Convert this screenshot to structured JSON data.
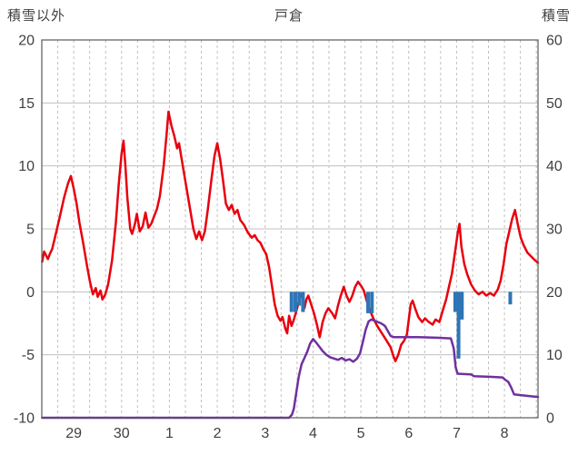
{
  "header": {
    "left_axis_title": "積雪以外",
    "chart_title": "戸倉",
    "right_axis_title": "積雪"
  },
  "chart_data": {
    "type": "line",
    "title": "戸倉",
    "left_axis": {
      "label": "積雪以外",
      "min": -10,
      "max": 20,
      "ticks": [
        20,
        15,
        10,
        5,
        0,
        -5,
        -10
      ]
    },
    "right_axis": {
      "label": "積雪",
      "min": 0,
      "max": 60,
      "ticks": [
        60,
        50,
        40,
        30,
        20,
        10,
        0
      ]
    },
    "x_axis": {
      "labels": [
        "29",
        "30",
        "1",
        "2",
        "3",
        "4",
        "5",
        "6",
        "7",
        "8"
      ],
      "min_t": -0.667,
      "max_t": 9.7,
      "gridline_step": 0.3333,
      "grid": true
    },
    "colors": {
      "temperature": "#e8000d",
      "snow_depth": "#7030a0",
      "snowfall_bars": "#2e75b6",
      "gridline": "#c0c0c0",
      "border": "#595959",
      "tick_text": "#3f3f3f"
    },
    "series": [
      {
        "name": "temperature",
        "axis": "left",
        "kind": "line",
        "points": [
          [
            -0.66,
            2.4
          ],
          [
            -0.62,
            3.2
          ],
          [
            -0.58,
            2.9
          ],
          [
            -0.54,
            2.6
          ],
          [
            -0.5,
            3.0
          ],
          [
            -0.45,
            3.4
          ],
          [
            -0.4,
            4.2
          ],
          [
            -0.3,
            5.8
          ],
          [
            -0.2,
            7.5
          ],
          [
            -0.12,
            8.6
          ],
          [
            -0.06,
            9.2
          ],
          [
            0.0,
            8.2
          ],
          [
            0.06,
            7.0
          ],
          [
            0.12,
            5.5
          ],
          [
            0.2,
            3.8
          ],
          [
            0.28,
            2.0
          ],
          [
            0.34,
            0.8
          ],
          [
            0.4,
            -0.2
          ],
          [
            0.46,
            0.3
          ],
          [
            0.5,
            -0.4
          ],
          [
            0.56,
            0.1
          ],
          [
            0.6,
            -0.6
          ],
          [
            0.66,
            -0.2
          ],
          [
            0.72,
            0.6
          ],
          [
            0.8,
            2.5
          ],
          [
            0.88,
            5.5
          ],
          [
            0.94,
            8.5
          ],
          [
            1.0,
            11.0
          ],
          [
            1.04,
            12.0
          ],
          [
            1.08,
            10.0
          ],
          [
            1.12,
            7.5
          ],
          [
            1.18,
            5.0
          ],
          [
            1.22,
            4.6
          ],
          [
            1.28,
            5.4
          ],
          [
            1.32,
            6.2
          ],
          [
            1.38,
            4.8
          ],
          [
            1.44,
            5.2
          ],
          [
            1.5,
            6.3
          ],
          [
            1.56,
            5.1
          ],
          [
            1.62,
            5.4
          ],
          [
            1.68,
            6.0
          ],
          [
            1.74,
            6.6
          ],
          [
            1.8,
            7.6
          ],
          [
            1.88,
            10.0
          ],
          [
            1.94,
            12.5
          ],
          [
            1.98,
            14.3
          ],
          [
            2.04,
            13.2
          ],
          [
            2.1,
            12.4
          ],
          [
            2.16,
            11.4
          ],
          [
            2.2,
            11.8
          ],
          [
            2.26,
            10.4
          ],
          [
            2.34,
            8.6
          ],
          [
            2.42,
            6.8
          ],
          [
            2.5,
            5.0
          ],
          [
            2.56,
            4.2
          ],
          [
            2.62,
            4.8
          ],
          [
            2.68,
            4.1
          ],
          [
            2.74,
            4.8
          ],
          [
            2.8,
            6.5
          ],
          [
            2.88,
            9.0
          ],
          [
            2.94,
            10.8
          ],
          [
            3.0,
            11.8
          ],
          [
            3.06,
            10.5
          ],
          [
            3.12,
            8.8
          ],
          [
            3.18,
            7.0
          ],
          [
            3.24,
            6.5
          ],
          [
            3.3,
            6.9
          ],
          [
            3.36,
            6.2
          ],
          [
            3.42,
            6.5
          ],
          [
            3.48,
            5.7
          ],
          [
            3.56,
            5.3
          ],
          [
            3.64,
            4.7
          ],
          [
            3.72,
            4.3
          ],
          [
            3.78,
            4.5
          ],
          [
            3.84,
            4.1
          ],
          [
            3.9,
            3.9
          ],
          [
            3.96,
            3.4
          ],
          [
            4.02,
            3.0
          ],
          [
            4.08,
            2.0
          ],
          [
            4.14,
            0.5
          ],
          [
            4.2,
            -1.0
          ],
          [
            4.26,
            -1.9
          ],
          [
            4.32,
            -2.3
          ],
          [
            4.36,
            -2.0
          ],
          [
            4.42,
            -2.9
          ],
          [
            4.46,
            -3.3
          ],
          [
            4.5,
            -1.9
          ],
          [
            4.55,
            -2.7
          ],
          [
            4.6,
            -2.2
          ],
          [
            4.66,
            -1.4
          ],
          [
            4.72,
            -0.5
          ],
          [
            4.76,
            -0.2
          ],
          [
            4.82,
            -1.3
          ],
          [
            4.86,
            -0.6
          ],
          [
            4.9,
            -0.3
          ],
          [
            4.96,
            -1.0
          ],
          [
            5.02,
            -1.7
          ],
          [
            5.08,
            -2.6
          ],
          [
            5.14,
            -3.6
          ],
          [
            5.2,
            -2.4
          ],
          [
            5.26,
            -1.7
          ],
          [
            5.32,
            -1.3
          ],
          [
            5.4,
            -1.7
          ],
          [
            5.46,
            -2.1
          ],
          [
            5.52,
            -1.1
          ],
          [
            5.58,
            -0.3
          ],
          [
            5.64,
            0.4
          ],
          [
            5.7,
            -0.3
          ],
          [
            5.76,
            -0.8
          ],
          [
            5.82,
            -0.3
          ],
          [
            5.88,
            0.4
          ],
          [
            5.94,
            0.8
          ],
          [
            6.0,
            0.5
          ],
          [
            6.06,
            0.1
          ],
          [
            6.12,
            -0.7
          ],
          [
            6.18,
            -1.4
          ],
          [
            6.26,
            -2.1
          ],
          [
            6.34,
            -2.7
          ],
          [
            6.44,
            -3.3
          ],
          [
            6.54,
            -3.9
          ],
          [
            6.62,
            -4.4
          ],
          [
            6.68,
            -5.1
          ],
          [
            6.72,
            -5.5
          ],
          [
            6.78,
            -5.0
          ],
          [
            6.84,
            -4.2
          ],
          [
            6.9,
            -3.9
          ],
          [
            6.96,
            -3.4
          ],
          [
            7.0,
            -2.2
          ],
          [
            7.04,
            -1.0
          ],
          [
            7.08,
            -0.7
          ],
          [
            7.14,
            -1.4
          ],
          [
            7.2,
            -2.0
          ],
          [
            7.28,
            -2.4
          ],
          [
            7.34,
            -2.1
          ],
          [
            7.42,
            -2.4
          ],
          [
            7.5,
            -2.6
          ],
          [
            7.56,
            -2.2
          ],
          [
            7.64,
            -2.4
          ],
          [
            7.7,
            -1.6
          ],
          [
            7.78,
            -0.6
          ],
          [
            7.84,
            0.4
          ],
          [
            7.9,
            1.4
          ],
          [
            7.96,
            3.0
          ],
          [
            8.02,
            4.6
          ],
          [
            8.06,
            5.4
          ],
          [
            8.1,
            3.6
          ],
          [
            8.16,
            2.2
          ],
          [
            8.22,
            1.4
          ],
          [
            8.3,
            0.6
          ],
          [
            8.38,
            0.1
          ],
          [
            8.46,
            -0.2
          ],
          [
            8.54,
            0.0
          ],
          [
            8.62,
            -0.3
          ],
          [
            8.7,
            -0.1
          ],
          [
            8.78,
            -0.3
          ],
          [
            8.86,
            0.2
          ],
          [
            8.92,
            0.9
          ],
          [
            8.98,
            2.2
          ],
          [
            9.04,
            3.8
          ],
          [
            9.1,
            4.8
          ],
          [
            9.16,
            5.8
          ],
          [
            9.22,
            6.5
          ],
          [
            9.28,
            5.3
          ],
          [
            9.34,
            4.3
          ],
          [
            9.4,
            3.7
          ],
          [
            9.48,
            3.1
          ],
          [
            9.56,
            2.8
          ],
          [
            9.64,
            2.5
          ],
          [
            9.7,
            2.3
          ]
        ]
      },
      {
        "name": "snow-depth",
        "axis": "right",
        "kind": "line",
        "points": [
          [
            -0.66,
            0
          ],
          [
            4.5,
            0
          ],
          [
            4.56,
            0.5
          ],
          [
            4.6,
            1.5
          ],
          [
            4.64,
            3.5
          ],
          [
            4.7,
            6.5
          ],
          [
            4.76,
            8.5
          ],
          [
            4.82,
            9.5
          ],
          [
            4.88,
            10.5
          ],
          [
            4.94,
            11.8
          ],
          [
            5.0,
            12.5
          ],
          [
            5.06,
            12.0
          ],
          [
            5.12,
            11.4
          ],
          [
            5.2,
            10.6
          ],
          [
            5.28,
            10.0
          ],
          [
            5.36,
            9.6
          ],
          [
            5.44,
            9.4
          ],
          [
            5.52,
            9.2
          ],
          [
            5.6,
            9.5
          ],
          [
            5.68,
            9.1
          ],
          [
            5.76,
            9.3
          ],
          [
            5.84,
            8.9
          ],
          [
            5.92,
            9.4
          ],
          [
            5.98,
            10.2
          ],
          [
            6.04,
            12.0
          ],
          [
            6.1,
            14.0
          ],
          [
            6.16,
            15.3
          ],
          [
            6.22,
            15.6
          ],
          [
            6.32,
            15.3
          ],
          [
            6.42,
            15.0
          ],
          [
            6.5,
            14.6
          ],
          [
            6.56,
            13.8
          ],
          [
            6.62,
            13.0
          ],
          [
            6.68,
            12.8
          ],
          [
            7.2,
            12.8
          ],
          [
            7.6,
            12.7
          ],
          [
            7.88,
            12.6
          ],
          [
            7.94,
            11.0
          ],
          [
            7.98,
            8.0
          ],
          [
            8.02,
            7.0
          ],
          [
            8.3,
            6.9
          ],
          [
            8.36,
            6.6
          ],
          [
            8.7,
            6.5
          ],
          [
            8.96,
            6.4
          ],
          [
            9.02,
            6.0
          ],
          [
            9.08,
            5.7
          ],
          [
            9.14,
            4.8
          ],
          [
            9.2,
            3.7
          ],
          [
            9.45,
            3.5
          ],
          [
            9.7,
            3.3
          ]
        ]
      },
      {
        "name": "snowfall-bars",
        "axis": "left",
        "kind": "bar",
        "points": [
          [
            4.55,
            -1.6
          ],
          [
            4.63,
            -1.6
          ],
          [
            4.71,
            -1.1
          ],
          [
            4.79,
            -1.6
          ],
          [
            6.15,
            -1.7
          ],
          [
            6.23,
            -1.7
          ],
          [
            7.97,
            -1.6
          ],
          [
            8.04,
            -5.3
          ],
          [
            8.11,
            -2.2
          ],
          [
            9.12,
            -1.0
          ]
        ]
      }
    ]
  }
}
